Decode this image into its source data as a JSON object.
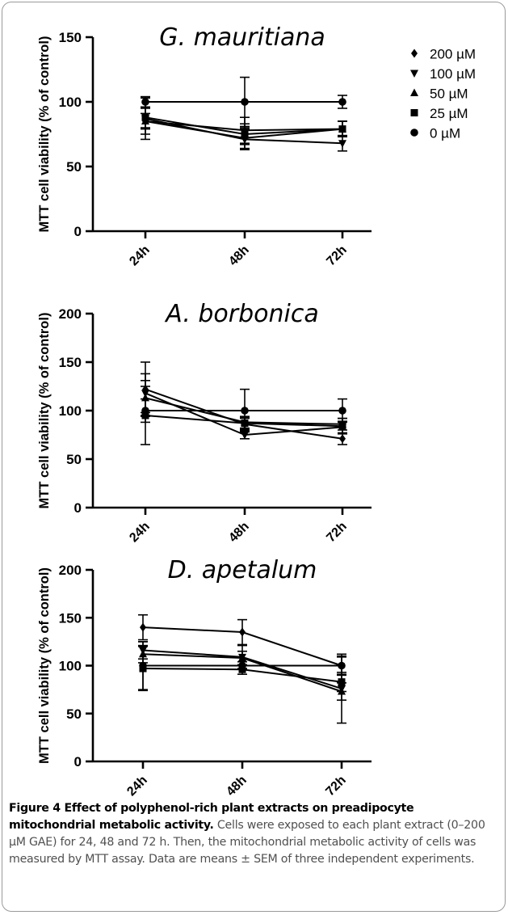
{
  "chart_data": [
    {
      "type": "line",
      "title": "G. mauritiana",
      "ylabel": "MTT cell viability (% of control)",
      "xlabel": "",
      "categories": [
        "24h",
        "48h",
        "72h"
      ],
      "ylim": [
        0,
        150
      ],
      "yticks": [
        0,
        50,
        100,
        150
      ],
      "grid": false,
      "legend": "top-right",
      "series": [
        {
          "name": "200 µM",
          "marker": "diamond",
          "values": [
            85,
            72,
            79
          ],
          "errors": [
            6,
            8,
            6
          ]
        },
        {
          "name": "100 µM",
          "marker": "triangle-down",
          "values": [
            87,
            71,
            68
          ],
          "errors": [
            16,
            8,
            6
          ]
        },
        {
          "name": "50 µM",
          "marker": "triangle-up",
          "values": [
            85,
            78,
            79
          ],
          "errors": [
            10,
            10,
            6
          ]
        },
        {
          "name": "25 µM",
          "marker": "square",
          "values": [
            88,
            75,
            79
          ],
          "errors": [
            8,
            8,
            6
          ]
        },
        {
          "name": "0 µM",
          "marker": "circle",
          "values": [
            100,
            100,
            100
          ],
          "errors": [
            4,
            19,
            5
          ]
        }
      ]
    },
    {
      "type": "line",
      "title": "A. borbonica",
      "ylabel": "MTT cell viability (% of control)",
      "xlabel": "",
      "categories": [
        "24h",
        "48h",
        "72h"
      ],
      "ylim": [
        0,
        200
      ],
      "yticks": [
        0,
        50,
        100,
        150,
        200
      ],
      "grid": false,
      "legend": "none",
      "series": [
        {
          "name": "200 µM",
          "marker": "diamond",
          "values": [
            122,
            86,
            71
          ],
          "errors": [
            28,
            6,
            6
          ]
        },
        {
          "name": "100 µM",
          "marker": "triangle-down",
          "values": [
            118,
            75,
            83
          ],
          "errors": [
            20,
            4,
            6
          ]
        },
        {
          "name": "50 µM",
          "marker": "triangle-up",
          "values": [
            113,
            88,
            86
          ],
          "errors": [
            18,
            6,
            6
          ]
        },
        {
          "name": "25 µM",
          "marker": "square",
          "values": [
            95,
            87,
            84
          ],
          "errors": [
            30,
            6,
            8
          ]
        },
        {
          "name": "0 µM",
          "marker": "circle",
          "values": [
            100,
            100,
            100
          ],
          "errors": [
            12,
            22,
            12
          ]
        }
      ]
    },
    {
      "type": "line",
      "title": "D. apetalum",
      "ylabel": "MTT cell viability (% of control)",
      "xlabel": "",
      "categories": [
        "24h",
        "48h",
        "72h"
      ],
      "ylim": [
        0,
        200
      ],
      "yticks": [
        0,
        50,
        100,
        150,
        200
      ],
      "grid": false,
      "legend": "none",
      "series": [
        {
          "name": "200 µM",
          "marker": "diamond",
          "values": [
            140,
            135,
            100
          ],
          "errors": [
            13,
            13,
            9
          ]
        },
        {
          "name": "100 µM",
          "marker": "triangle-down",
          "values": [
            116,
            109,
            76
          ],
          "errors": [
            9,
            12,
            36
          ]
        },
        {
          "name": "50 µM",
          "marker": "triangle-up",
          "values": [
            112,
            108,
            73
          ],
          "errors": [
            9,
            7,
            9
          ]
        },
        {
          "name": "25 µM",
          "marker": "square",
          "values": [
            97,
            96,
            83
          ],
          "errors": [
            23,
            5,
            10
          ]
        },
        {
          "name": "0 µM",
          "marker": "circle",
          "values": [
            100,
            100,
            100
          ],
          "errors": [
            25,
            4,
            10
          ]
        }
      ]
    }
  ],
  "caption": {
    "title": "Figure 4 Effect of polyphenol-rich plant extracts on preadipocyte mitochondrial metabolic activity.",
    "text": " Cells were exposed to each plant extract (0–200 µM GAE) for 24, 48 and 72 h. Then, the mitochondrial metabolic activity of cells was measured by MTT assay. Data are means ± SEM of three independent experiments."
  }
}
